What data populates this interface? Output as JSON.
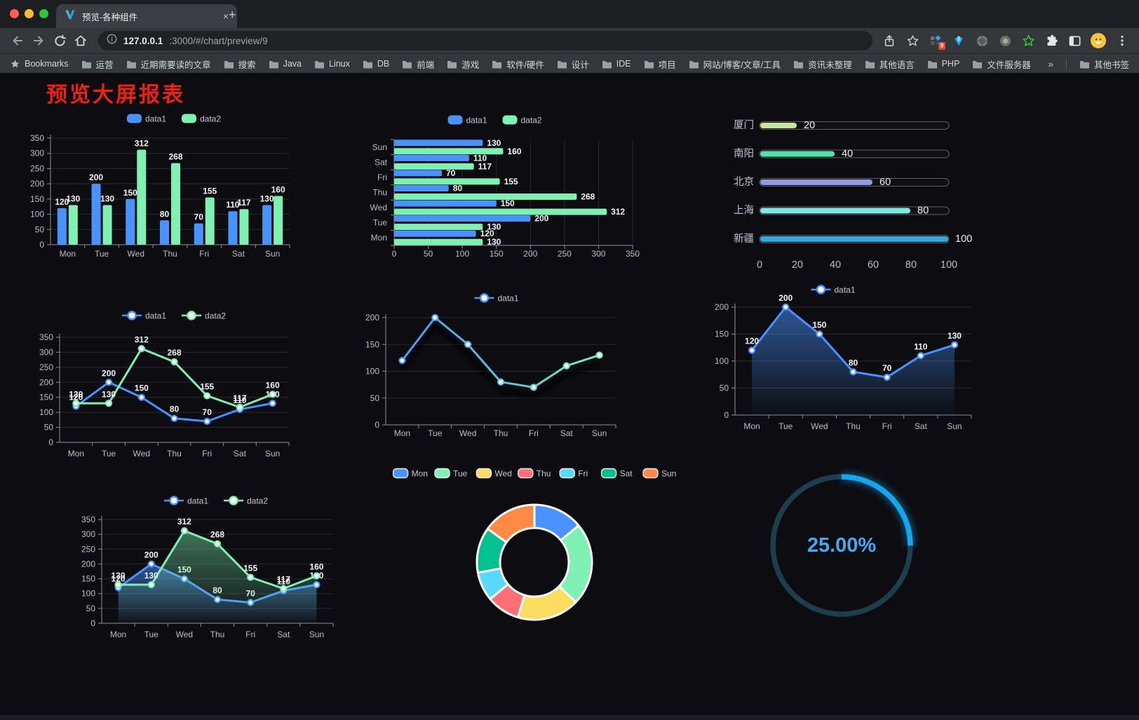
{
  "browser": {
    "window_controls": [
      "close",
      "minimize",
      "zoom"
    ],
    "tab": {
      "title": "预览-各种组件",
      "close_glyph": "×",
      "new_tab_glyph": "+"
    },
    "address": {
      "host": "127.0.0.1",
      "path": ":3000/#/chart/preview/9"
    },
    "extension_badge": "9",
    "bookmarks_bar": {
      "first": "Bookmarks",
      "folders": [
        "运营",
        "近期需要读的文章",
        "搜索",
        "Java",
        "Linux",
        "DB",
        "前端",
        "游戏",
        "软件/硬件",
        "设计",
        "IDE",
        "项目",
        "网站/博客/文章/工具",
        "资讯未整理",
        "其他语言",
        "PHP",
        "文件服务器"
      ],
      "overflow": "»",
      "other": "其他书签"
    }
  },
  "page": {
    "title": "预览大屏报表"
  },
  "colors": {
    "data1": "#4992ff",
    "data2": "#7df0b2",
    "axis_label": "#bcbcce",
    "value_label": "#f4f4f8",
    "title_red": "#ee2212"
  },
  "chart_data": [
    {
      "id": "bar-grouped",
      "type": "bar",
      "categories": [
        "Mon",
        "Tue",
        "Wed",
        "Thu",
        "Fri",
        "Sat",
        "Sun"
      ],
      "series": [
        {
          "name": "data1",
          "color": "#4992ff",
          "values": [
            120,
            200,
            150,
            80,
            70,
            110,
            130
          ]
        },
        {
          "name": "data2",
          "color": "#7df0b2",
          "values": [
            130,
            130,
            312,
            268,
            155,
            117,
            160
          ]
        }
      ],
      "ylim": [
        0,
        350
      ],
      "ystep": 50,
      "legend_position": "top",
      "grid": true
    },
    {
      "id": "bar-horizontal",
      "type": "hbar",
      "categories": [
        "Mon",
        "Tue",
        "Wed",
        "Thu",
        "Fri",
        "Sat",
        "Sun"
      ],
      "series": [
        {
          "name": "data1",
          "color": "#4992ff",
          "values": [
            120,
            200,
            150,
            80,
            70,
            110,
            130
          ]
        },
        {
          "name": "data2",
          "color": "#7df0b2",
          "values": [
            130,
            130,
            312,
            268,
            155,
            117,
            160
          ]
        }
      ],
      "xlim": [
        0,
        350
      ],
      "xstep": 50,
      "legend_position": "top",
      "grid": true
    },
    {
      "id": "progress",
      "type": "progress",
      "max": 100,
      "xticks": [
        0,
        20,
        40,
        60,
        80,
        100
      ],
      "rows": [
        {
          "label": "厦门",
          "value": 20,
          "color": "#c6e79e"
        },
        {
          "label": "南阳",
          "value": 40,
          "color": "#59dfab"
        },
        {
          "label": "北京",
          "value": 60,
          "color": "#9399dc"
        },
        {
          "label": "上海",
          "value": 80,
          "color": "#80e6e1"
        },
        {
          "label": "新疆",
          "value": 100,
          "color": "#36a7de"
        }
      ]
    },
    {
      "id": "line-grouped",
      "type": "line",
      "categories": [
        "Mon",
        "Tue",
        "Wed",
        "Thu",
        "Fri",
        "Sat",
        "Sun"
      ],
      "series": [
        {
          "name": "data1",
          "color": "#4992ff",
          "values": [
            120,
            200,
            150,
            80,
            70,
            110,
            130
          ]
        },
        {
          "name": "data2",
          "color": "#7df0b2",
          "values": [
            130,
            130,
            312,
            268,
            155,
            117,
            160
          ]
        }
      ],
      "ylim": [
        0,
        350
      ],
      "ystep": 50,
      "labels": true,
      "legend_position": "top"
    },
    {
      "id": "line-gradient",
      "type": "line",
      "categories": [
        "Mon",
        "Tue",
        "Wed",
        "Thu",
        "Fri",
        "Sat",
        "Sun"
      ],
      "series": [
        {
          "name": "data1",
          "gradient": [
            "#4992ff",
            "#7df0b2"
          ],
          "values": [
            120,
            200,
            150,
            80,
            70,
            110,
            130
          ]
        }
      ],
      "ylim": [
        0,
        200
      ],
      "ystep": 50,
      "labels": false,
      "shadow": true,
      "legend_position": "top"
    },
    {
      "id": "area-single",
      "type": "line",
      "categories": [
        "Mon",
        "Tue",
        "Wed",
        "Thu",
        "Fri",
        "Sat",
        "Sun"
      ],
      "series": [
        {
          "name": "data1",
          "color": "#4992ff",
          "area": true,
          "values": [
            120,
            200,
            150,
            80,
            70,
            110,
            130
          ]
        }
      ],
      "ylim": [
        0,
        200
      ],
      "ystep": 50,
      "labels": true,
      "legend_position": "top"
    },
    {
      "id": "area-grouped",
      "type": "line",
      "categories": [
        "Mon",
        "Tue",
        "Wed",
        "Thu",
        "Fri",
        "Sat",
        "Sun"
      ],
      "series": [
        {
          "name": "data1",
          "color": "#4992ff",
          "area": true,
          "values": [
            120,
            200,
            150,
            80,
            70,
            110,
            130
          ]
        },
        {
          "name": "data2",
          "color": "#7df0b2",
          "area": true,
          "values": [
            130,
            130,
            312,
            268,
            155,
            117,
            160
          ]
        }
      ],
      "ylim": [
        0,
        350
      ],
      "ystep": 50,
      "labels": true,
      "legend_position": "top"
    },
    {
      "id": "donut",
      "type": "pie",
      "legend": [
        "Mon",
        "Tue",
        "Wed",
        "Thu",
        "Fri",
        "Sat",
        "Sun"
      ],
      "values": [
        120,
        200,
        150,
        80,
        70,
        110,
        130
      ],
      "colors": [
        "#4992ff",
        "#7df0b2",
        "#fddd60",
        "#ff6e76",
        "#58d9f9",
        "#05c091",
        "#ff8a45"
      ],
      "inner_radius_ratio": 0.6,
      "border_color": "#ffffff"
    },
    {
      "id": "gauge",
      "type": "gauge",
      "value": 25,
      "display": "25.00%",
      "color": "#17a5ee",
      "track": "#1d3e4c",
      "text_color": "#43aaf2"
    }
  ]
}
